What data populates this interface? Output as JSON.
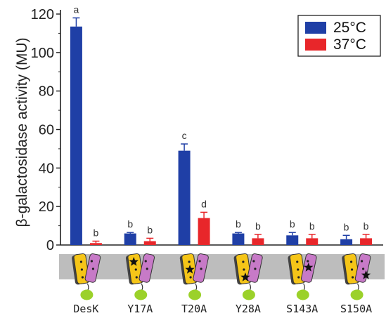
{
  "chart_data": {
    "type": "bar",
    "categories": [
      "DesK",
      "Y17A",
      "T20A",
      "Y28A",
      "S143A",
      "S150A"
    ],
    "ylabel": "β-galactosidase activity (MU)",
    "ylim": [
      0,
      120
    ],
    "yticks": [
      0,
      20,
      40,
      60,
      80,
      100,
      120
    ],
    "legend_position": "top-right",
    "series": [
      {
        "name": "25°C",
        "color": "#1f3fa6",
        "values": [
          113.5,
          6.0,
          49.0,
          6.0,
          5.0,
          3.0
        ],
        "errors": [
          4.5,
          0.5,
          3.5,
          0.5,
          1.5,
          2.0
        ],
        "letters": [
          "a",
          "b",
          "c",
          "b",
          "b",
          "b"
        ]
      },
      {
        "name": "37°C",
        "color": "#e8262a",
        "values": [
          1.0,
          2.0,
          14.0,
          3.5,
          3.5,
          3.5
        ],
        "errors": [
          1.0,
          1.5,
          3.0,
          2.0,
          2.0,
          2.0
        ],
        "letters": [
          "b",
          "b",
          "d",
          "b",
          "b",
          "b"
        ]
      }
    ],
    "grid": false,
    "schematic_icons": {
      "membrane_color": "#bdbdbd",
      "helix1_color": "#f5c518",
      "helix2_color": "#c77ac7",
      "domain_color": "#9bd12a",
      "mutation_marker": "star"
    }
  }
}
